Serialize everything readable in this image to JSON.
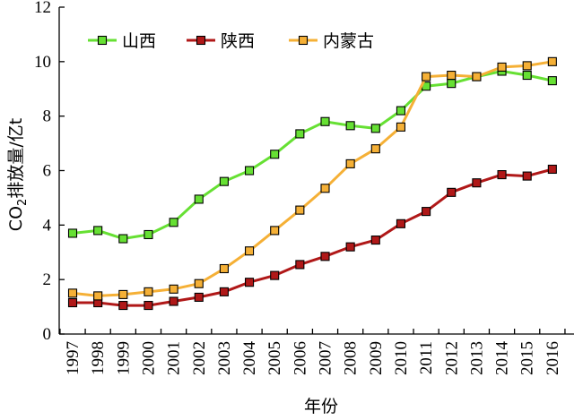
{
  "chart_data": {
    "type": "line",
    "xlabel": "年份",
    "ylabel_main": "CO",
    "ylabel_sub": "2",
    "ylabel_rest": "排放量/亿t",
    "ylim": [
      0,
      12
    ],
    "yticks": [
      0,
      2,
      4,
      6,
      8,
      10,
      12
    ],
    "grid": false,
    "legend_position": "top-left",
    "x": [
      "1997",
      "1998",
      "1999",
      "2000",
      "2001",
      "2002",
      "2003",
      "2004",
      "2005",
      "2006",
      "2007",
      "2008",
      "2009",
      "2010",
      "2011",
      "2012",
      "2013",
      "2014",
      "2015",
      "2016"
    ],
    "series": [
      {
        "name": "山西",
        "color": "#66e033",
        "marker_fill": "#66e033",
        "values": [
          3.7,
          3.8,
          3.5,
          3.65,
          4.1,
          4.95,
          5.6,
          6.0,
          6.6,
          7.35,
          7.8,
          7.65,
          7.55,
          8.2,
          9.1,
          9.2,
          9.45,
          9.65,
          9.5,
          9.3
        ]
      },
      {
        "name": "陕西",
        "color": "#b01818",
        "marker_fill": "#b01818",
        "values": [
          1.15,
          1.15,
          1.05,
          1.05,
          1.2,
          1.35,
          1.55,
          1.9,
          2.15,
          2.55,
          2.85,
          3.2,
          3.45,
          4.05,
          4.5,
          5.2,
          5.55,
          5.85,
          5.8,
          6.05
        ]
      },
      {
        "name": "内蒙古",
        "color": "#f5b036",
        "marker_fill": "#f5b036",
        "values": [
          1.5,
          1.4,
          1.45,
          1.55,
          1.65,
          1.85,
          2.4,
          3.05,
          3.8,
          4.55,
          5.35,
          6.25,
          6.8,
          7.6,
          9.45,
          9.5,
          9.45,
          9.8,
          9.85,
          10.0
        ]
      }
    ]
  }
}
